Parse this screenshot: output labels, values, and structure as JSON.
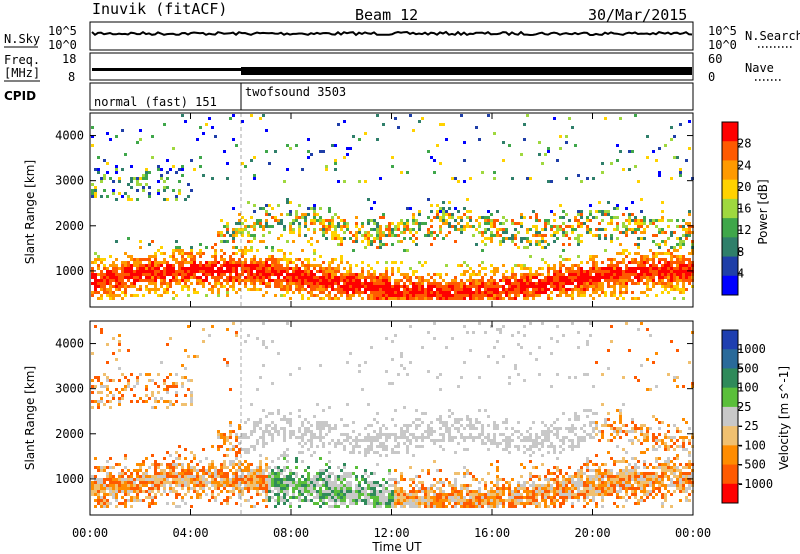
{
  "header": {
    "station": "Inuvik (fitACF)",
    "beam": "Beam 12",
    "date": "30/Mar/2015"
  },
  "noise_panel": {
    "left_label": "N.Sky",
    "right_label": "N.Search",
    "ticks_left": [
      "10^5",
      "10^0"
    ],
    "ticks_right": [
      "10^5",
      "10^0"
    ]
  },
  "freq_panel": {
    "left_label_1": "Freq.",
    "left_label_2": "[MHz]",
    "right_label": "Nave",
    "ticks_left": [
      "18",
      "8"
    ],
    "ticks_right": [
      "60",
      "0"
    ]
  },
  "cpid_panel": {
    "label": "CPID",
    "modes": [
      {
        "name": "normal (fast) 151",
        "start_hour": 0,
        "end_hour": 6
      },
      {
        "name": "twofsound 3503",
        "start_hour": 6,
        "end_hour": 24
      }
    ]
  },
  "colors": {
    "power": [
      "#0000ff",
      "#1f3fa8",
      "#2f7f6a",
      "#3fa74a",
      "#9fd83f",
      "#ffd200",
      "#ff9a00",
      "#ff5a00",
      "#ff0000"
    ],
    "velocity": [
      "#1f3fb0",
      "#2a6a9a",
      "#2f8a5a",
      "#5abf3a",
      "#c8c8c8",
      "#f0c070",
      "#ff8c00",
      "#ff5a00",
      "#ff0000"
    ]
  },
  "chart_data": [
    {
      "type": "heatmap",
      "title": "",
      "ylabel": "Slant Range [km]",
      "ylim": [
        200,
        4500
      ],
      "yticks": [
        "1000",
        "2000",
        "3000",
        "4000"
      ],
      "colorbar": {
        "label": "Power [dB]",
        "ticks": [
          "4",
          "8",
          "12",
          "16",
          "20",
          "24",
          "28"
        ],
        "range": [
          0,
          30
        ]
      }
    },
    {
      "type": "heatmap",
      "title": "",
      "xlabel": "Time UT",
      "ylabel": "Slant Range [km]",
      "ylim": [
        200,
        4500
      ],
      "yticks": [
        "1000",
        "2000",
        "3000",
        "4000"
      ],
      "xticks": [
        "00:00",
        "04:00",
        "08:00",
        "12:00",
        "16:00",
        "20:00",
        "00:00"
      ],
      "colorbar": {
        "label": "Velocity [m s^-1]",
        "ticks": [
          "1000",
          "500",
          "100",
          "25",
          "-25",
          "-100",
          "-500",
          "-1000"
        ]
      }
    }
  ]
}
